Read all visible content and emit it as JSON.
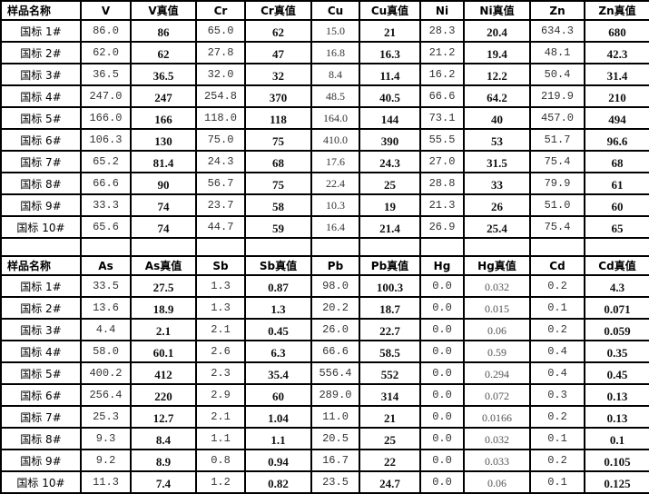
{
  "tables": [
    {
      "headers": [
        "样品名称",
        "V",
        "V真值",
        "Cr",
        "Cr真值",
        "Cu",
        "Cu真值",
        "Ni",
        "Ni真值",
        "Zn",
        "Zn真值"
      ],
      "rows": [
        [
          "国标 1#",
          "86.0",
          "86",
          "65.0",
          "62",
          "15.0",
          "21",
          "28.3",
          "20.4",
          "634.3",
          "680"
        ],
        [
          "国标 2#",
          "62.0",
          "62",
          "27.8",
          "47",
          "16.8",
          "16.3",
          "21.2",
          "19.4",
          "48.1",
          "42.3"
        ],
        [
          "国标 3#",
          "36.5",
          "36.5",
          "32.0",
          "32",
          "8.4",
          "11.4",
          "16.2",
          "12.2",
          "50.4",
          "31.4"
        ],
        [
          "国标 4#",
          "247.0",
          "247",
          "254.8",
          "370",
          "48.5",
          "40.5",
          "66.6",
          "64.2",
          "219.9",
          "210"
        ],
        [
          "国标 5#",
          "166.0",
          "166",
          "118.0",
          "118",
          "164.0",
          "144",
          "73.1",
          "40",
          "457.0",
          "494"
        ],
        [
          "国标 6#",
          "106.3",
          "130",
          "75.0",
          "75",
          "410.0",
          "390",
          "55.5",
          "53",
          "51.7",
          "96.6"
        ],
        [
          "国标 7#",
          "65.2",
          "81.4",
          "24.3",
          "68",
          "17.6",
          "24.3",
          "27.0",
          "31.5",
          "75.4",
          "68"
        ],
        [
          "国标 8#",
          "66.6",
          "90",
          "56.7",
          "75",
          "22.4",
          "25",
          "28.8",
          "33",
          "79.9",
          "61"
        ],
        [
          "国标 9#",
          "33.3",
          "74",
          "23.7",
          "58",
          "10.3",
          "19",
          "21.3",
          "26",
          "51.0",
          "60"
        ],
        [
          "国标 10#",
          "65.6",
          "74",
          "44.7",
          "59",
          "16.4",
          "21.4",
          "26.9",
          "25.4",
          "75.4",
          "65"
        ]
      ]
    },
    {
      "headers": [
        "样品名称",
        "As",
        "As真值",
        "Sb",
        "Sb真值",
        "Pb",
        "Pb真值",
        "Hg",
        "Hg真值",
        "Cd",
        "Cd真值"
      ],
      "rows": [
        [
          "国标 1#",
          "33.5",
          "27.5",
          "1.3",
          "0.87",
          "98.0",
          "100.3",
          "0.0",
          "0.032",
          "0.2",
          "4.3"
        ],
        [
          "国标 2#",
          "13.6",
          "18.9",
          "1.3",
          "1.3",
          "20.2",
          "18.7",
          "0.0",
          "0.015",
          "0.1",
          "0.071"
        ],
        [
          "国标 3#",
          "4.4",
          "2.1",
          "2.1",
          "0.45",
          "26.0",
          "22.7",
          "0.0",
          "0.06",
          "0.2",
          "0.059"
        ],
        [
          "国标 4#",
          "58.0",
          "60.1",
          "2.6",
          "6.3",
          "66.6",
          "58.5",
          "0.0",
          "0.59",
          "0.4",
          "0.35"
        ],
        [
          "国标 5#",
          "400.2",
          "412",
          "2.3",
          "35.4",
          "556.4",
          "552",
          "0.0",
          "0.294",
          "0.4",
          "0.45"
        ],
        [
          "国标 6#",
          "256.4",
          "220",
          "2.9",
          "60",
          "289.0",
          "314",
          "0.0",
          "0.072",
          "0.3",
          "0.13"
        ],
        [
          "国标 7#",
          "25.3",
          "12.7",
          "2.1",
          "1.04",
          "11.0",
          "21",
          "0.0",
          "0.0166",
          "0.2",
          "0.13"
        ],
        [
          "国标 8#",
          "9.3",
          "8.4",
          "1.1",
          "1.1",
          "20.5",
          "25",
          "0.0",
          "0.032",
          "0.1",
          "0.1"
        ],
        [
          "国标 9#",
          "9.2",
          "8.9",
          "0.8",
          "0.94",
          "16.7",
          "22",
          "0.0",
          "0.033",
          "0.2",
          "0.105"
        ],
        [
          "国标 10#",
          "11.3",
          "7.4",
          "1.2",
          "0.82",
          "23.5",
          "24.7",
          "0.0",
          "0.06",
          "0.1",
          "0.125"
        ]
      ]
    }
  ]
}
